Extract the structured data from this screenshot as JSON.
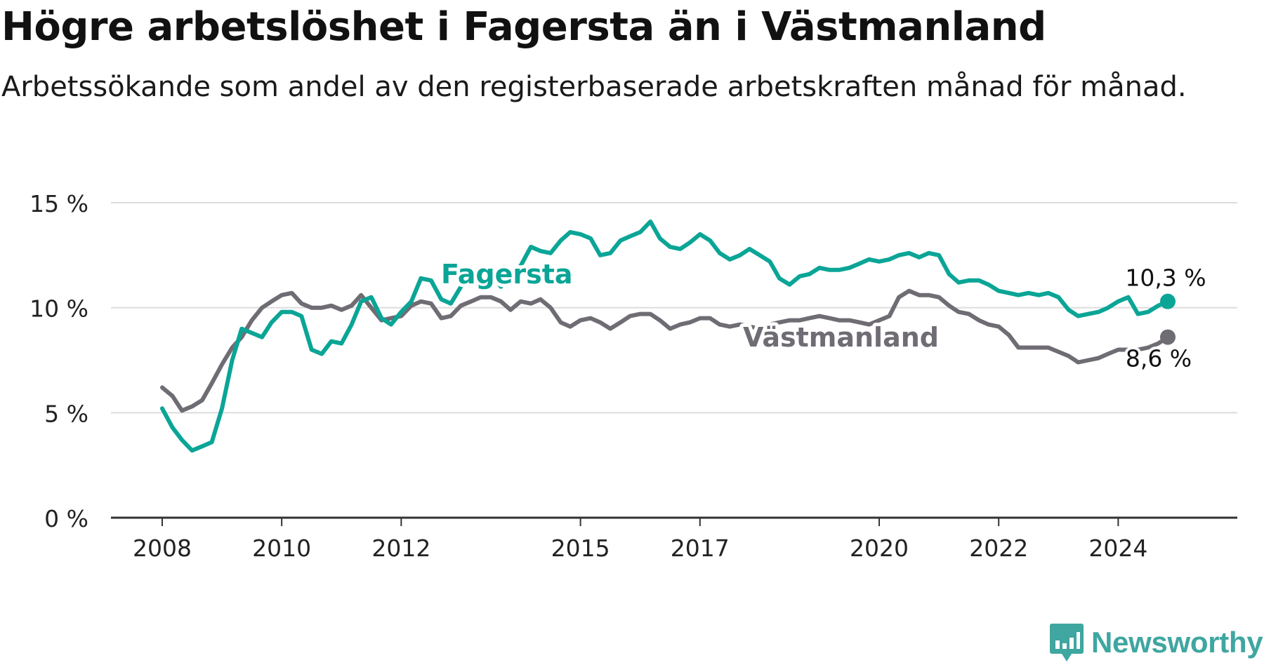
{
  "title": "Högre arbetslöshet i Fagersta än i Västmanland",
  "subtitle": "Arbetssökande som andel av den registerbaserade arbetskraften månad för månad.",
  "brand": {
    "name": "Newsworthy",
    "color": "#3fa6a0",
    "icon": "bar-chart-speech-bubble-icon"
  },
  "chart_data": {
    "type": "line",
    "x_range": [
      2007.8,
      2025.8
    ],
    "ylim": [
      0,
      15
    ],
    "y_ticks": [
      {
        "value": 0,
        "label": "0 %"
      },
      {
        "value": 5,
        "label": "5 %"
      },
      {
        "value": 10,
        "label": "10 %"
      },
      {
        "value": 15,
        "label": "15 %"
      }
    ],
    "x_ticks": [
      {
        "value": 2008,
        "label": "2008"
      },
      {
        "value": 2010,
        "label": "2010"
      },
      {
        "value": 2012,
        "label": "2012"
      },
      {
        "value": 2015,
        "label": "2015"
      },
      {
        "value": 2017,
        "label": "2017"
      },
      {
        "value": 2020,
        "label": "2020"
      },
      {
        "value": 2022,
        "label": "2022"
      },
      {
        "value": 2024,
        "label": "2024"
      }
    ],
    "grid": true,
    "legend": "inline labels",
    "series": [
      {
        "name": "Fagersta",
        "color": "#0aa596",
        "end_label": "10,3 %",
        "points": [
          [
            2008.0,
            5.2
          ],
          [
            2008.17,
            4.3
          ],
          [
            2008.33,
            3.7
          ],
          [
            2008.5,
            3.2
          ],
          [
            2008.67,
            3.4
          ],
          [
            2008.83,
            3.6
          ],
          [
            2009.0,
            5.2
          ],
          [
            2009.17,
            7.5
          ],
          [
            2009.33,
            9.0
          ],
          [
            2009.5,
            8.8
          ],
          [
            2009.67,
            8.6
          ],
          [
            2009.83,
            9.3
          ],
          [
            2010.0,
            9.8
          ],
          [
            2010.17,
            9.8
          ],
          [
            2010.33,
            9.6
          ],
          [
            2010.5,
            8.0
          ],
          [
            2010.67,
            7.8
          ],
          [
            2010.83,
            8.4
          ],
          [
            2011.0,
            8.3
          ],
          [
            2011.17,
            9.2
          ],
          [
            2011.33,
            10.3
          ],
          [
            2011.5,
            10.5
          ],
          [
            2011.67,
            9.5
          ],
          [
            2011.83,
            9.2
          ],
          [
            2012.0,
            9.8
          ],
          [
            2012.17,
            10.3
          ],
          [
            2012.33,
            11.4
          ],
          [
            2012.5,
            11.3
          ],
          [
            2012.67,
            10.4
          ],
          [
            2012.83,
            10.2
          ],
          [
            2013.0,
            11.0
          ],
          [
            2013.17,
            11.8
          ],
          [
            2013.33,
            11.5
          ],
          [
            2013.5,
            11.6
          ],
          [
            2013.67,
            11.0
          ],
          [
            2013.83,
            11.6
          ],
          [
            2014.0,
            12.0
          ],
          [
            2014.17,
            12.9
          ],
          [
            2014.33,
            12.7
          ],
          [
            2014.5,
            12.6
          ],
          [
            2014.67,
            13.2
          ],
          [
            2014.83,
            13.6
          ],
          [
            2015.0,
            13.5
          ],
          [
            2015.17,
            13.3
          ],
          [
            2015.33,
            12.5
          ],
          [
            2015.5,
            12.6
          ],
          [
            2015.67,
            13.2
          ],
          [
            2015.83,
            13.4
          ],
          [
            2016.0,
            13.6
          ],
          [
            2016.17,
            14.1
          ],
          [
            2016.33,
            13.3
          ],
          [
            2016.5,
            12.9
          ],
          [
            2016.67,
            12.8
          ],
          [
            2016.83,
            13.1
          ],
          [
            2017.0,
            13.5
          ],
          [
            2017.17,
            13.2
          ],
          [
            2017.33,
            12.6
          ],
          [
            2017.5,
            12.3
          ],
          [
            2017.67,
            12.5
          ],
          [
            2017.83,
            12.8
          ],
          [
            2018.0,
            12.5
          ],
          [
            2018.17,
            12.2
          ],
          [
            2018.33,
            11.4
          ],
          [
            2018.5,
            11.1
          ],
          [
            2018.67,
            11.5
          ],
          [
            2018.83,
            11.6
          ],
          [
            2019.0,
            11.9
          ],
          [
            2019.17,
            11.8
          ],
          [
            2019.33,
            11.8
          ],
          [
            2019.5,
            11.9
          ],
          [
            2019.67,
            12.1
          ],
          [
            2019.83,
            12.3
          ],
          [
            2020.0,
            12.2
          ],
          [
            2020.17,
            12.3
          ],
          [
            2020.33,
            12.5
          ],
          [
            2020.5,
            12.6
          ],
          [
            2020.67,
            12.4
          ],
          [
            2020.83,
            12.6
          ],
          [
            2021.0,
            12.5
          ],
          [
            2021.17,
            11.6
          ],
          [
            2021.33,
            11.2
          ],
          [
            2021.5,
            11.3
          ],
          [
            2021.67,
            11.3
          ],
          [
            2021.83,
            11.1
          ],
          [
            2022.0,
            10.8
          ],
          [
            2022.17,
            10.7
          ],
          [
            2022.33,
            10.6
          ],
          [
            2022.5,
            10.7
          ],
          [
            2022.67,
            10.6
          ],
          [
            2022.83,
            10.7
          ],
          [
            2023.0,
            10.5
          ],
          [
            2023.17,
            9.9
          ],
          [
            2023.33,
            9.6
          ],
          [
            2023.5,
            9.7
          ],
          [
            2023.67,
            9.8
          ],
          [
            2023.83,
            10.0
          ],
          [
            2024.0,
            10.3
          ],
          [
            2024.17,
            10.5
          ],
          [
            2024.33,
            9.7
          ],
          [
            2024.5,
            9.8
          ],
          [
            2024.67,
            10.1
          ],
          [
            2024.83,
            10.3
          ]
        ]
      },
      {
        "name": "Västmanland",
        "color": "#6f6c74",
        "end_label": "8,6 %",
        "points": [
          [
            2008.0,
            6.2
          ],
          [
            2008.17,
            5.8
          ],
          [
            2008.33,
            5.1
          ],
          [
            2008.5,
            5.3
          ],
          [
            2008.67,
            5.6
          ],
          [
            2008.83,
            6.4
          ],
          [
            2009.0,
            7.3
          ],
          [
            2009.17,
            8.1
          ],
          [
            2009.33,
            8.6
          ],
          [
            2009.5,
            9.4
          ],
          [
            2009.67,
            10.0
          ],
          [
            2009.83,
            10.3
          ],
          [
            2010.0,
            10.6
          ],
          [
            2010.17,
            10.7
          ],
          [
            2010.33,
            10.2
          ],
          [
            2010.5,
            10.0
          ],
          [
            2010.67,
            10.0
          ],
          [
            2010.83,
            10.1
          ],
          [
            2011.0,
            9.9
          ],
          [
            2011.17,
            10.1
          ],
          [
            2011.33,
            10.6
          ],
          [
            2011.5,
            10.0
          ],
          [
            2011.67,
            9.4
          ],
          [
            2011.83,
            9.5
          ],
          [
            2012.0,
            9.6
          ],
          [
            2012.17,
            10.1
          ],
          [
            2012.33,
            10.3
          ],
          [
            2012.5,
            10.2
          ],
          [
            2012.67,
            9.5
          ],
          [
            2012.83,
            9.6
          ],
          [
            2013.0,
            10.1
          ],
          [
            2013.17,
            10.3
          ],
          [
            2013.33,
            10.5
          ],
          [
            2013.5,
            10.5
          ],
          [
            2013.67,
            10.3
          ],
          [
            2013.83,
            9.9
          ],
          [
            2014.0,
            10.3
          ],
          [
            2014.17,
            10.2
          ],
          [
            2014.33,
            10.4
          ],
          [
            2014.5,
            10.0
          ],
          [
            2014.67,
            9.3
          ],
          [
            2014.83,
            9.1
          ],
          [
            2015.0,
            9.4
          ],
          [
            2015.17,
            9.5
          ],
          [
            2015.33,
            9.3
          ],
          [
            2015.5,
            9.0
          ],
          [
            2015.67,
            9.3
          ],
          [
            2015.83,
            9.6
          ],
          [
            2016.0,
            9.7
          ],
          [
            2016.17,
            9.7
          ],
          [
            2016.33,
            9.4
          ],
          [
            2016.5,
            9.0
          ],
          [
            2016.67,
            9.2
          ],
          [
            2016.83,
            9.3
          ],
          [
            2017.0,
            9.5
          ],
          [
            2017.17,
            9.5
          ],
          [
            2017.33,
            9.2
          ],
          [
            2017.5,
            9.1
          ],
          [
            2017.67,
            9.2
          ],
          [
            2017.83,
            9.1
          ],
          [
            2018.0,
            9.0
          ],
          [
            2018.17,
            9.2
          ],
          [
            2018.33,
            9.3
          ],
          [
            2018.5,
            9.4
          ],
          [
            2018.67,
            9.4
          ],
          [
            2018.83,
            9.5
          ],
          [
            2019.0,
            9.6
          ],
          [
            2019.17,
            9.5
          ],
          [
            2019.33,
            9.4
          ],
          [
            2019.5,
            9.4
          ],
          [
            2019.67,
            9.3
          ],
          [
            2019.83,
            9.2
          ],
          [
            2020.0,
            9.4
          ],
          [
            2020.17,
            9.6
          ],
          [
            2020.33,
            10.5
          ],
          [
            2020.5,
            10.8
          ],
          [
            2020.67,
            10.6
          ],
          [
            2020.83,
            10.6
          ],
          [
            2021.0,
            10.5
          ],
          [
            2021.17,
            10.1
          ],
          [
            2021.33,
            9.8
          ],
          [
            2021.5,
            9.7
          ],
          [
            2021.67,
            9.4
          ],
          [
            2021.83,
            9.2
          ],
          [
            2022.0,
            9.1
          ],
          [
            2022.17,
            8.7
          ],
          [
            2022.33,
            8.1
          ],
          [
            2022.5,
            8.1
          ],
          [
            2022.67,
            8.1
          ],
          [
            2022.83,
            8.1
          ],
          [
            2023.0,
            7.9
          ],
          [
            2023.17,
            7.7
          ],
          [
            2023.33,
            7.4
          ],
          [
            2023.5,
            7.5
          ],
          [
            2023.67,
            7.6
          ],
          [
            2023.83,
            7.8
          ],
          [
            2024.0,
            8.0
          ],
          [
            2024.17,
            8.0
          ],
          [
            2024.33,
            8.0
          ],
          [
            2024.5,
            8.1
          ],
          [
            2024.67,
            8.3
          ],
          [
            2024.83,
            8.6
          ]
        ]
      }
    ]
  }
}
